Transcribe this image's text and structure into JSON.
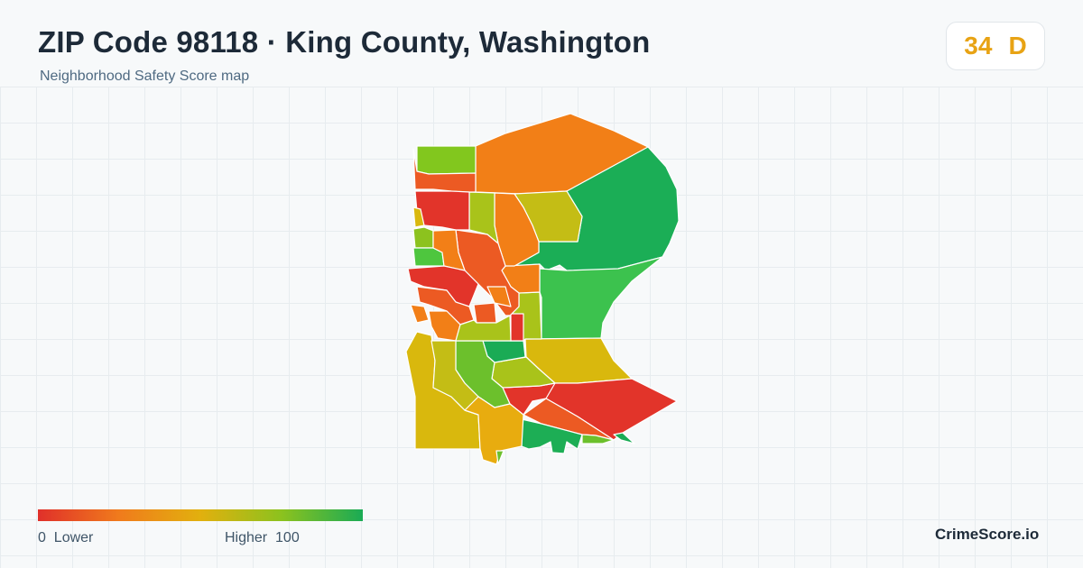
{
  "header": {
    "title": "ZIP Code 98118 · King County, Washington",
    "subtitle": "Neighborhood Safety Score map"
  },
  "score": {
    "value": "34",
    "grade": "D",
    "color": "#e8a314"
  },
  "legend": {
    "min_value": "0",
    "min_label": "Lower",
    "max_label": "Higher",
    "max_value": "100",
    "colors": [
      "#e0302a",
      "#f07b1c",
      "#e2b00e",
      "#8cc21e",
      "#1aab55"
    ]
  },
  "brand": "CrimeScore.io"
}
